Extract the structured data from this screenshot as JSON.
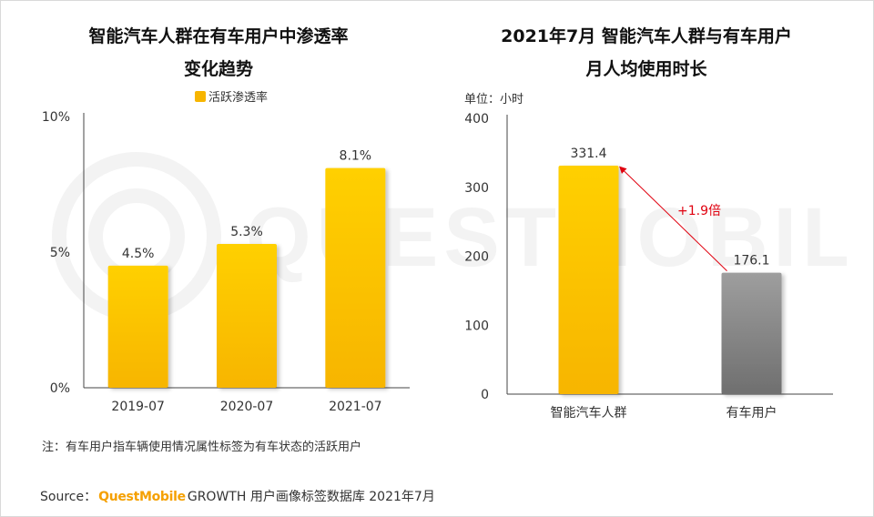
{
  "colors": {
    "accent": "#ffd000",
    "accent_dark": "#f7b500",
    "gray": "#9e9e9e",
    "gray_dark": "#6f6f6f",
    "annotation": "#e0000f"
  },
  "left": {
    "title_line1": "智能汽车人群在有车用户中渗透率",
    "title_line2": "变化趋势",
    "legend": "活跃渗透率"
  },
  "right": {
    "title_line1": "2021年7月 智能汽车人群与有车用户",
    "title_line2": "月人均使用时长",
    "unit": "单位：小时",
    "annotation": "+1.9倍"
  },
  "note": "注：有车用户指车辆使用情况属性标签为有车状态的活跃用户",
  "source": {
    "prefix": "Source：",
    "brand": "QuestMobile",
    "suffix": "GROWTH 用户画像标签数据库 2021年7月"
  },
  "watermark": "QUESTMOBILE",
  "chart_data": [
    {
      "type": "bar",
      "title": "智能汽车人群在有车用户中渗透率变化趋势",
      "categories": [
        "2019-07",
        "2020-07",
        "2021-07"
      ],
      "series": [
        {
          "name": "活跃渗透率",
          "values": [
            4.5,
            5.3,
            8.1
          ]
        }
      ],
      "value_labels": [
        "4.5%",
        "5.3%",
        "8.1%"
      ],
      "ylim": [
        0,
        10
      ],
      "yticks": [
        0,
        5,
        10
      ],
      "ytick_labels": [
        "0%",
        "5%",
        "10%"
      ],
      "xlabel": "",
      "ylabel": "",
      "legend": "top"
    },
    {
      "type": "bar",
      "title": "2021年7月 智能汽车人群与有车用户月人均使用时长",
      "categories": [
        "智能汽车人群",
        "有车用户"
      ],
      "series": [
        {
          "name": "月人均使用时长",
          "values": [
            331.4,
            176.1
          ]
        }
      ],
      "value_labels": [
        "331.4",
        "176.1"
      ],
      "ylim": [
        0,
        400
      ],
      "yticks": [
        0,
        100,
        200,
        300,
        400
      ],
      "ytick_labels": [
        "0",
        "100",
        "200",
        "300",
        "400"
      ],
      "xlabel": "",
      "ylabel": "单位：小时",
      "annotations": [
        "+1.9倍"
      ]
    }
  ]
}
